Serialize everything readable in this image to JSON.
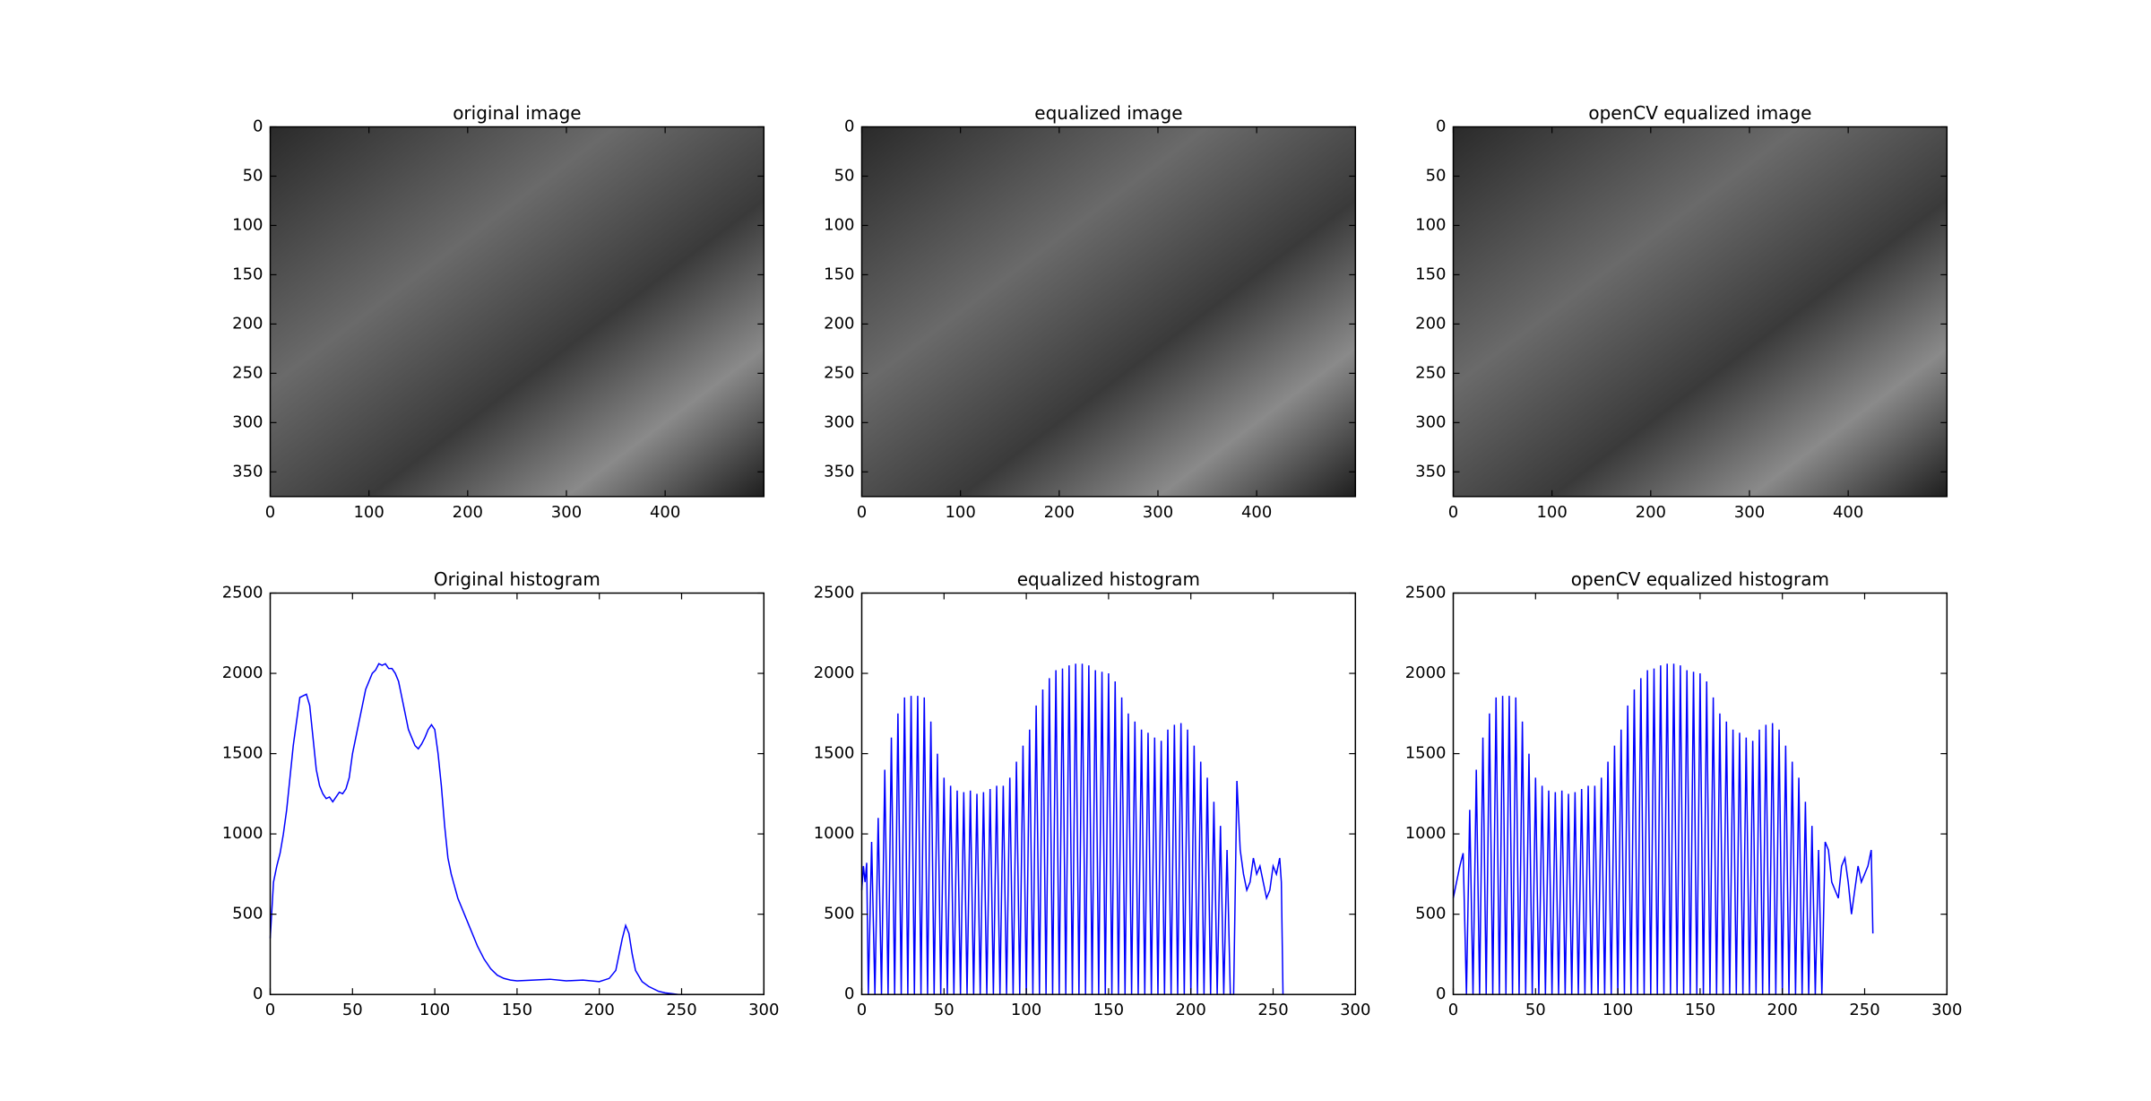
{
  "chart_data": [
    {
      "type": "image",
      "title": "original image",
      "xlim": [
        0,
        500
      ],
      "ylim": [
        375,
        0
      ],
      "xticks": [
        0,
        100,
        200,
        300,
        400
      ],
      "yticks": [
        0,
        50,
        100,
        150,
        200,
        250,
        300,
        350
      ]
    },
    {
      "type": "image",
      "title": "equalized image",
      "xlim": [
        0,
        500
      ],
      "ylim": [
        375,
        0
      ],
      "xticks": [
        0,
        100,
        200,
        300,
        400
      ],
      "yticks": [
        0,
        50,
        100,
        150,
        200,
        250,
        300,
        350
      ]
    },
    {
      "type": "image",
      "title": "openCV equalized image",
      "xlim": [
        0,
        500
      ],
      "ylim": [
        375,
        0
      ],
      "xticks": [
        0,
        100,
        200,
        300,
        400
      ],
      "yticks": [
        0,
        50,
        100,
        150,
        200,
        250,
        300,
        350
      ]
    },
    {
      "type": "line",
      "title": "Original histogram",
      "xlim": [
        0,
        300
      ],
      "ylim": [
        0,
        2500
      ],
      "xticks": [
        0,
        50,
        100,
        150,
        200,
        250,
        300
      ],
      "yticks": [
        0,
        500,
        1000,
        1500,
        2000,
        2500
      ],
      "color": "#0000ff",
      "x": [
        0,
        2,
        4,
        6,
        8,
        10,
        12,
        14,
        16,
        18,
        20,
        22,
        24,
        26,
        28,
        30,
        32,
        34,
        36,
        38,
        40,
        42,
        44,
        46,
        48,
        50,
        52,
        54,
        56,
        58,
        60,
        62,
        64,
        66,
        68,
        70,
        72,
        74,
        76,
        78,
        80,
        82,
        84,
        86,
        88,
        90,
        92,
        94,
        96,
        98,
        100,
        102,
        104,
        106,
        108,
        110,
        114,
        118,
        122,
        126,
        130,
        134,
        138,
        142,
        146,
        150,
        160,
        170,
        180,
        190,
        200,
        206,
        210,
        212,
        214,
        216,
        218,
        220,
        222,
        226,
        230,
        236,
        240,
        244,
        248,
        255
      ],
      "values": [
        350,
        700,
        800,
        880,
        1000,
        1150,
        1350,
        1550,
        1700,
        1850,
        1860,
        1870,
        1800,
        1600,
        1400,
        1300,
        1250,
        1220,
        1230,
        1200,
        1230,
        1260,
        1250,
        1280,
        1350,
        1500,
        1600,
        1700,
        1800,
        1900,
        1950,
        2000,
        2020,
        2060,
        2050,
        2060,
        2030,
        2030,
        2000,
        1950,
        1850,
        1750,
        1650,
        1600,
        1550,
        1530,
        1560,
        1600,
        1650,
        1680,
        1650,
        1500,
        1300,
        1050,
        850,
        750,
        600,
        500,
        400,
        300,
        220,
        160,
        120,
        100,
        90,
        85,
        90,
        95,
        85,
        90,
        80,
        100,
        150,
        250,
        350,
        430,
        380,
        250,
        150,
        80,
        50,
        20,
        10,
        5,
        0,
        0
      ]
    },
    {
      "type": "line",
      "title": "equalized histogram",
      "xlim": [
        0,
        300
      ],
      "ylim": [
        0,
        2500
      ],
      "xticks": [
        0,
        50,
        100,
        150,
        200,
        250,
        300
      ],
      "yticks": [
        0,
        500,
        1000,
        1500,
        2000,
        2500
      ],
      "color": "#0000ff",
      "x": [
        0,
        1,
        2,
        3,
        4,
        6,
        8,
        10,
        12,
        14,
        16,
        18,
        20,
        22,
        24,
        26,
        28,
        30,
        32,
        34,
        36,
        38,
        40,
        42,
        44,
        46,
        48,
        50,
        52,
        54,
        56,
        58,
        60,
        62,
        64,
        66,
        68,
        70,
        72,
        74,
        76,
        78,
        80,
        82,
        84,
        86,
        88,
        90,
        92,
        94,
        96,
        98,
        100,
        102,
        104,
        106,
        108,
        110,
        112,
        114,
        116,
        118,
        120,
        122,
        124,
        126,
        128,
        130,
        132,
        134,
        136,
        138,
        140,
        142,
        144,
        146,
        148,
        150,
        152,
        154,
        156,
        158,
        160,
        162,
        164,
        166,
        168,
        170,
        172,
        174,
        176,
        178,
        180,
        182,
        184,
        186,
        188,
        190,
        192,
        194,
        196,
        198,
        200,
        202,
        204,
        206,
        208,
        210,
        212,
        214,
        216,
        218,
        220,
        222,
        224,
        226,
        228,
        230,
        232,
        234,
        236,
        238,
        240,
        242,
        244,
        246,
        248,
        250,
        252,
        254,
        255,
        256
      ],
      "values": [
        650,
        800,
        700,
        820,
        0,
        950,
        0,
        1100,
        0,
        1400,
        0,
        1600,
        0,
        1750,
        0,
        1850,
        0,
        1860,
        0,
        1860,
        0,
        1850,
        0,
        1700,
        0,
        1500,
        0,
        1350,
        0,
        1300,
        0,
        1270,
        0,
        1260,
        0,
        1270,
        0,
        1250,
        0,
        1260,
        0,
        1280,
        0,
        1300,
        0,
        1300,
        0,
        1350,
        0,
        1450,
        0,
        1550,
        0,
        1650,
        0,
        1800,
        0,
        1900,
        0,
        1970,
        0,
        2020,
        0,
        2030,
        0,
        2050,
        0,
        2060,
        0,
        2060,
        0,
        2050,
        0,
        2020,
        0,
        2010,
        0,
        2000,
        0,
        1950,
        0,
        1850,
        0,
        1750,
        0,
        1700,
        0,
        1650,
        0,
        1630,
        0,
        1600,
        0,
        1580,
        0,
        1650,
        0,
        1680,
        0,
        1690,
        0,
        1650,
        0,
        1550,
        0,
        1450,
        0,
        1350,
        0,
        1200,
        0,
        1050,
        0,
        900,
        0,
        0,
        1330,
        900,
        750,
        650,
        700,
        850,
        750,
        800,
        700,
        600,
        650,
        800,
        750,
        850,
        700,
        0
      ]
    },
    {
      "type": "line",
      "title": "openCV equalized histogram",
      "xlim": [
        0,
        300
      ],
      "ylim": [
        0,
        2500
      ],
      "xticks": [
        0,
        50,
        100,
        150,
        200,
        250,
        300
      ],
      "yticks": [
        0,
        500,
        1000,
        1500,
        2000,
        2500
      ],
      "color": "#0000ff",
      "x": [
        0,
        2,
        4,
        6,
        8,
        10,
        12,
        14,
        16,
        18,
        20,
        22,
        24,
        26,
        28,
        30,
        32,
        34,
        36,
        38,
        40,
        42,
        44,
        46,
        48,
        50,
        52,
        54,
        56,
        58,
        60,
        62,
        64,
        66,
        68,
        70,
        72,
        74,
        76,
        78,
        80,
        82,
        84,
        86,
        88,
        90,
        92,
        94,
        96,
        98,
        100,
        102,
        104,
        106,
        108,
        110,
        112,
        114,
        116,
        118,
        120,
        122,
        124,
        126,
        128,
        130,
        132,
        134,
        136,
        138,
        140,
        142,
        144,
        146,
        148,
        150,
        152,
        154,
        156,
        158,
        160,
        162,
        164,
        166,
        168,
        170,
        172,
        174,
        176,
        178,
        180,
        182,
        184,
        186,
        188,
        190,
        192,
        194,
        196,
        198,
        200,
        202,
        204,
        206,
        208,
        210,
        212,
        214,
        216,
        218,
        220,
        222,
        224,
        226,
        228,
        230,
        232,
        234,
        236,
        238,
        240,
        242,
        244,
        246,
        248,
        250,
        252,
        254,
        255
      ],
      "values": [
        600,
        700,
        800,
        880,
        0,
        1150,
        0,
        1400,
        0,
        1600,
        0,
        1750,
        0,
        1850,
        0,
        1860,
        0,
        1860,
        0,
        1850,
        0,
        1700,
        0,
        1500,
        0,
        1350,
        0,
        1300,
        0,
        1270,
        0,
        1260,
        0,
        1270,
        0,
        1250,
        0,
        1260,
        0,
        1280,
        0,
        1300,
        0,
        1300,
        0,
        1350,
        0,
        1450,
        0,
        1550,
        0,
        1650,
        0,
        1800,
        0,
        1900,
        0,
        1970,
        0,
        2020,
        0,
        2030,
        0,
        2050,
        0,
        2060,
        0,
        2060,
        0,
        2050,
        0,
        2020,
        0,
        2010,
        0,
        2000,
        0,
        1950,
        0,
        1850,
        0,
        1750,
        0,
        1700,
        0,
        1650,
        0,
        1630,
        0,
        1600,
        0,
        1580,
        0,
        1650,
        0,
        1680,
        0,
        1690,
        0,
        1650,
        0,
        1550,
        0,
        1450,
        0,
        1350,
        0,
        1200,
        0,
        1050,
        0,
        900,
        0,
        950,
        900,
        700,
        650,
        600,
        800,
        850,
        700,
        500,
        650,
        800,
        700,
        750,
        800,
        900,
        380
      ]
    }
  ]
}
